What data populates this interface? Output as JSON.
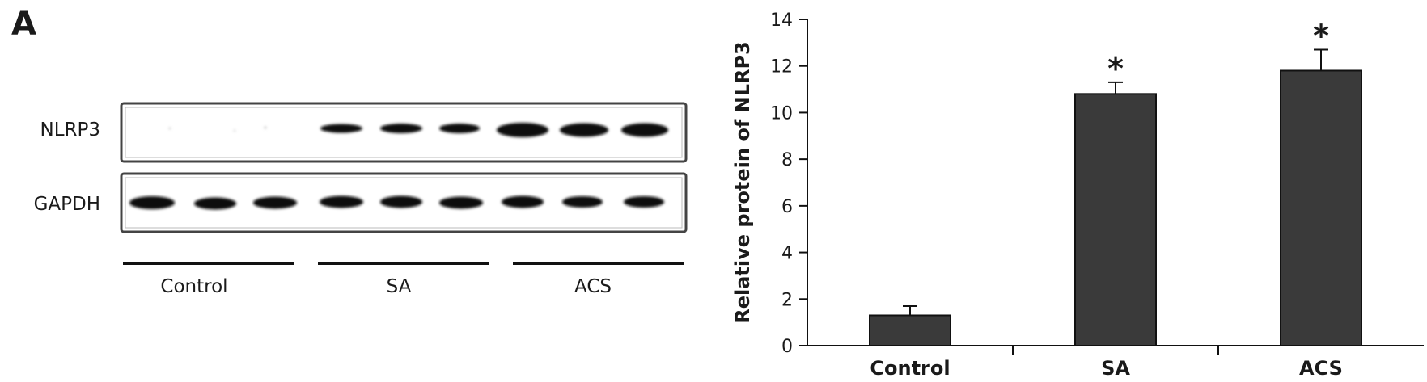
{
  "panel_label": "A",
  "blot": {
    "rows": [
      "NLRP3",
      "GAPDH"
    ],
    "groups": [
      "Control",
      "SA",
      "ACS"
    ]
  },
  "chart_data": {
    "type": "bar",
    "categories": [
      "Control",
      "SA",
      "ACS"
    ],
    "values": [
      1.3,
      10.8,
      11.8
    ],
    "errors": [
      0.4,
      0.5,
      0.9
    ],
    "significance": [
      "",
      "*",
      "*"
    ],
    "title": "",
    "xlabel": "",
    "ylabel": "Relative protein of NLRP3",
    "ylim": [
      0,
      14
    ],
    "yticks": [
      0,
      2,
      4,
      6,
      8,
      10,
      12,
      14
    ],
    "grid": false,
    "bar_color": "#3a3a3a"
  }
}
